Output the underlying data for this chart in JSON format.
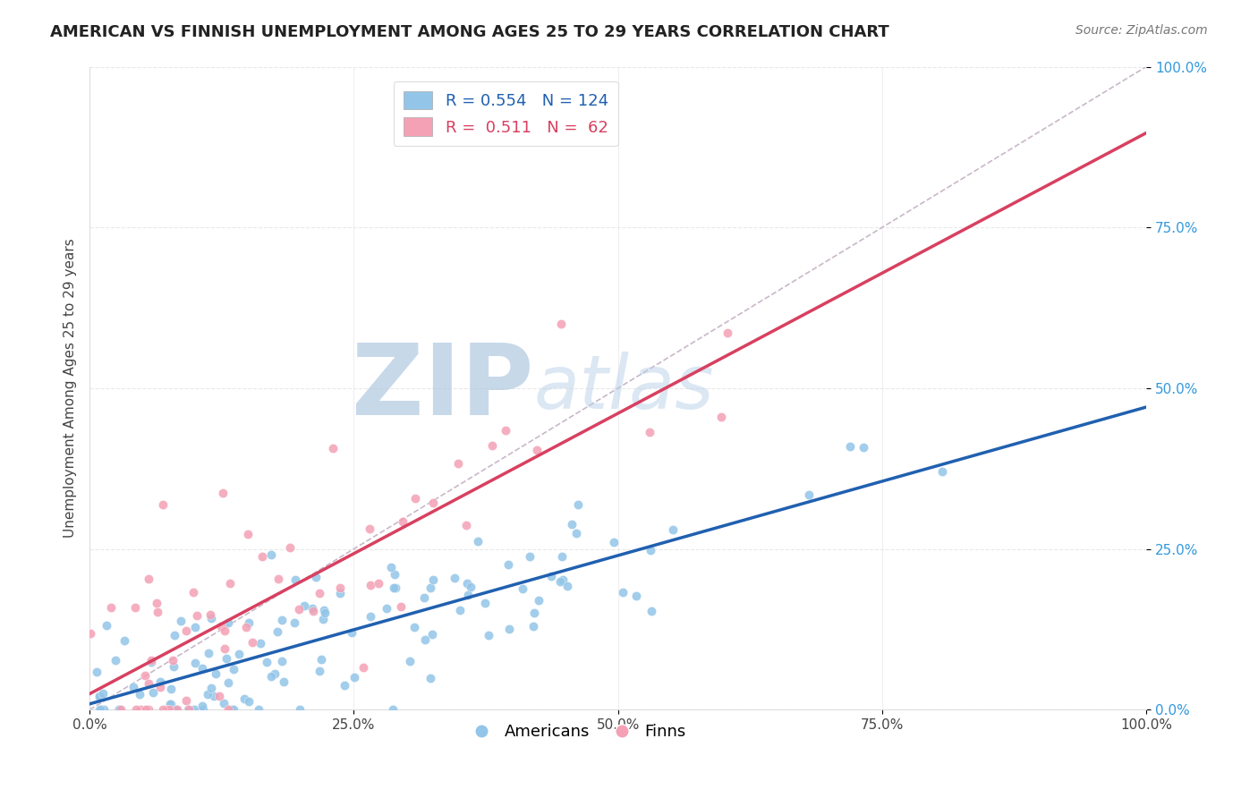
{
  "title": "AMERICAN VS FINNISH UNEMPLOYMENT AMONG AGES 25 TO 29 YEARS CORRELATION CHART",
  "source": "Source: ZipAtlas.com",
  "ylabel": "Unemployment Among Ages 25 to 29 years",
  "xlabel": "",
  "xlim": [
    0.0,
    1.0
  ],
  "ylim": [
    0.0,
    1.0
  ],
  "xticks": [
    0.0,
    0.25,
    0.5,
    0.75,
    1.0
  ],
  "yticks": [
    0.0,
    0.25,
    0.5,
    0.75,
    1.0
  ],
  "xticklabels": [
    "0.0%",
    "25.0%",
    "50.0%",
    "75.0%",
    "100.0%"
  ],
  "yticklabels": [
    "0.0%",
    "25.0%",
    "50.0%",
    "75.0%",
    "100.0%"
  ],
  "american_color": "#92c5e8",
  "finn_color": "#f4a0b5",
  "american_R": 0.554,
  "american_N": 124,
  "finn_R": 0.511,
  "finn_N": 62,
  "american_line_color": "#2060b0",
  "finn_line_color": "#d84060",
  "ref_line_color": "#c8b8c8",
  "watermark_ZIP": "ZIP",
  "watermark_atlas": "atlas",
  "watermark_color_ZIP": "#b8cce0",
  "watermark_color_atlas": "#b8cce0",
  "background_color": "#ffffff",
  "grid_color": "#e8e8e8",
  "title_fontsize": 13,
  "legend_fontsize": 13,
  "axis_label_fontsize": 11,
  "tick_fontsize": 11,
  "american_slope": 0.47,
  "american_intercept": 0.01,
  "finn_slope_steeper": 1.0,
  "finn_intercept": 0.0
}
